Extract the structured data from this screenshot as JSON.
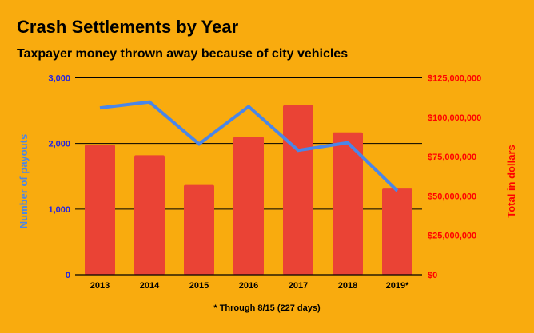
{
  "chart_data": {
    "type": "bar+line",
    "title": "Crash Settlements by Year",
    "subtitle": "Taxpayer money thrown away because of city vehicles",
    "footnote": "* Through 8/15 (227 days)",
    "categories": [
      "2013",
      "2014",
      "2015",
      "2016",
      "2017",
      "2018",
      "2019*"
    ],
    "left_axis": {
      "label": "Number of payouts",
      "range": [
        0,
        3000
      ],
      "ticks": [
        "0",
        "1,000",
        "2,000",
        "3,000"
      ],
      "tick_values": [
        0,
        1000,
        2000,
        3000
      ],
      "color": "#2323e0"
    },
    "right_axis": {
      "label": "Total in dollars",
      "range": [
        0,
        125000000
      ],
      "ticks": [
        "$0",
        "$25,000,000",
        "$50,000,000",
        "$75,000,000",
        "$100,000,000",
        "$125,000,000"
      ],
      "tick_values": [
        0,
        25000000,
        50000000,
        75000000,
        100000000,
        125000000
      ],
      "color": "#ff0000"
    },
    "grid": true,
    "series": [
      {
        "type": "bar",
        "axis": "right",
        "color": "#EA4335",
        "values": [
          82500000,
          75900000,
          57000000,
          87600000,
          107600000,
          90400000,
          54700000
        ]
      },
      {
        "type": "line",
        "axis": "left",
        "color": "#4A86E8",
        "values": [
          2542,
          2632,
          1992,
          2563,
          1895,
          2012,
          1279
        ]
      }
    ]
  }
}
